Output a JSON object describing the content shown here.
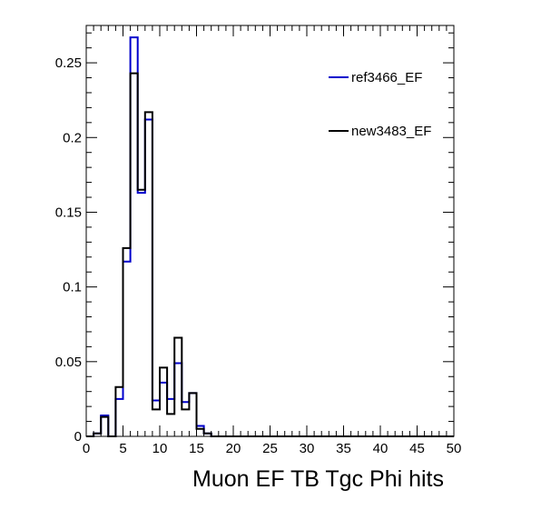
{
  "chart_data": {
    "type": "histogram",
    "title": "",
    "xlabel": "Muon EF TB Tgc Phi hits",
    "ylabel": "",
    "xlim": [
      0,
      50
    ],
    "ylim": [
      0,
      0.275
    ],
    "bin_width": 1,
    "x_ticks": [
      0,
      5,
      10,
      15,
      20,
      25,
      30,
      35,
      40,
      45,
      50
    ],
    "y_ticks": [
      0,
      0.05,
      0.1,
      0.15,
      0.2,
      0.25
    ],
    "y_tick_labels": [
      "0",
      "0.05",
      "0.1",
      "0.15",
      "0.2",
      "0.25"
    ],
    "grid": false,
    "legend_position": "top-right",
    "series": [
      {
        "name": "ref3466_EF",
        "color": "#0000cc",
        "bin_edges_start": 0,
        "values": [
          0.0,
          0.002,
          0.014,
          0.0,
          0.025,
          0.117,
          0.267,
          0.163,
          0.212,
          0.024,
          0.036,
          0.025,
          0.049,
          0.023,
          0.029,
          0.007,
          0.002,
          0.0,
          0.0,
          0.0,
          0.0,
          0.0,
          0.0,
          0.0,
          0.0,
          0.0,
          0.0,
          0.0,
          0.0,
          0.0,
          0.0,
          0.0,
          0.0,
          0.0,
          0.0,
          0.0,
          0.0,
          0.0,
          0.0,
          0.0,
          0.0,
          0.0,
          0.0,
          0.0,
          0.0,
          0.0,
          0.0,
          0.0,
          0.0,
          0.0
        ]
      },
      {
        "name": "new3483_EF",
        "color": "#000000",
        "bin_edges_start": 0,
        "values": [
          0.0,
          0.002,
          0.013,
          0.0,
          0.033,
          0.126,
          0.243,
          0.165,
          0.217,
          0.018,
          0.046,
          0.015,
          0.066,
          0.018,
          0.029,
          0.005,
          0.002,
          0.0,
          0.0,
          0.0,
          0.0,
          0.0,
          0.0,
          0.0,
          0.0,
          0.0,
          0.0,
          0.0,
          0.0,
          0.0,
          0.0,
          0.0,
          0.0,
          0.0,
          0.0,
          0.0,
          0.0,
          0.0,
          0.0,
          0.0,
          0.0,
          0.0,
          0.0,
          0.0,
          0.0,
          0.0,
          0.0,
          0.0,
          0.0,
          0.0
        ]
      }
    ]
  }
}
